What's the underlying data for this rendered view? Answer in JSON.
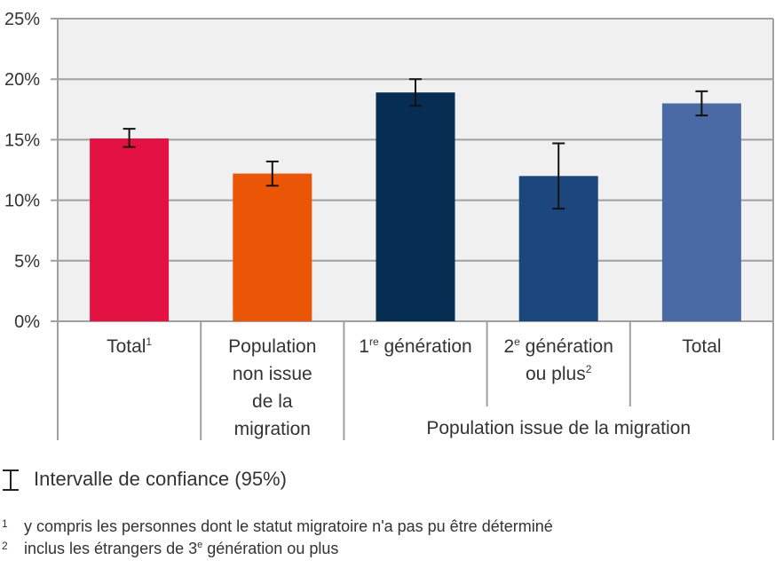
{
  "chart_data": {
    "type": "bar",
    "title": "",
    "xlabel": "",
    "ylabel": "",
    "ylim": [
      0,
      25
    ],
    "yticks": [
      0,
      5,
      10,
      15,
      20,
      25
    ],
    "ytick_labels": [
      "0%",
      "5%",
      "10%",
      "15%",
      "20%",
      "25%"
    ],
    "grid": true,
    "categories": [
      {
        "lines": [
          "Total"
        ],
        "sup": "1"
      },
      {
        "lines": [
          "Population",
          "non issue",
          "de la",
          "migration"
        ],
        "sup": ""
      },
      {
        "lines": [
          "1 génération"
        ],
        "prefix": "1",
        "prefix_sup": "re",
        "text": " génération",
        "sup": ""
      },
      {
        "lines": [
          "2 génération",
          "ou plus"
        ],
        "prefix": "2",
        "prefix_sup": "e",
        "text": " génération",
        "line2": "ou plus",
        "sup": "2"
      },
      {
        "lines": [
          "Total"
        ],
        "sup": ""
      }
    ],
    "group_label": "Population issue de la migration",
    "group_members": [
      2,
      3,
      4
    ],
    "values": [
      15.1,
      12.2,
      18.9,
      12.0,
      18.0
    ],
    "ci_low": [
      14.4,
      11.2,
      17.8,
      9.3,
      17.0
    ],
    "ci_high": [
      15.9,
      13.2,
      20.0,
      14.7,
      19.0
    ],
    "colors": [
      "#e31243",
      "#ea5506",
      "#052e52",
      "#1b477c",
      "#4a6aa5"
    ],
    "legend": {
      "symbol": "error-bar",
      "label": "Intervalle de confiance (95%)",
      "placement": "bottom-left"
    }
  },
  "footnotes": [
    {
      "num": "1",
      "text": "y compris les personnes dont le statut migratoire n'a pas pu être déterminé"
    },
    {
      "num": "2",
      "text_before": "inclus les étrangers de 3",
      "sup": "e",
      "text_after": " génération ou plus"
    }
  ]
}
